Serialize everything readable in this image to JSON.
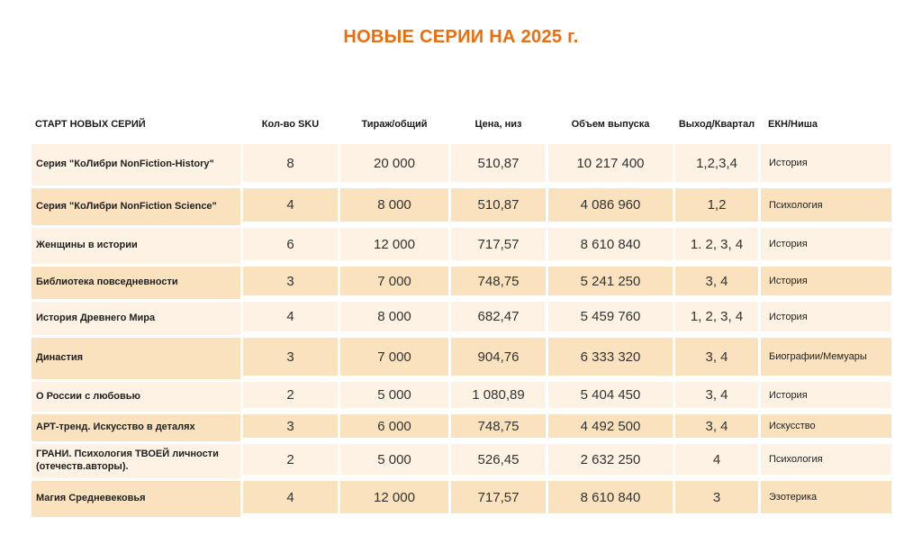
{
  "title": "НОВЫЕ СЕРИИ НА 2025 г.",
  "accent_color": "#ED6C0C",
  "row_colors": {
    "light": "#FDF2E3",
    "dark": "#FBE2BE"
  },
  "table": {
    "headers": [
      "СТАРТ НОВЫХ СЕРИЙ",
      "Кол-во SKU",
      "Тираж/общий",
      "Цена, низ",
      "Объем выпуска",
      "Выход/Квартал",
      "ЕКН/Ниша"
    ],
    "rows": [
      {
        "name": "Серия \"КоЛибри NonFiction-History\"",
        "sku": "8",
        "print_run": "20 000",
        "price_low": "510,87",
        "volume": "10 217 400",
        "quarter": "1,2,3,4",
        "niche": "История"
      },
      {
        "name": "Серия \"КоЛибри NonFiction Science\"",
        "sku": "4",
        "print_run": "8 000",
        "price_low": "510,87",
        "volume": "4 086 960",
        "quarter": "1,2",
        "niche": "Психология"
      },
      {
        "name": "Женщины в истории",
        "sku": "6",
        "print_run": "12 000",
        "price_low": "717,57",
        "volume": "8 610 840",
        "quarter": "1. 2, 3, 4",
        "niche": "История"
      },
      {
        "name": "Библиотека повседневности",
        "sku": "3",
        "print_run": "7 000",
        "price_low": "748,75",
        "volume": "5 241 250",
        "quarter": "3, 4",
        "niche": "История"
      },
      {
        "name": "История Древнего Мира",
        "sku": "4",
        "print_run": "8 000",
        "price_low": "682,47",
        "volume": "5 459 760",
        "quarter": "1, 2, 3, 4",
        "niche": "История"
      },
      {
        "name": "Династия",
        "sku": "3",
        "print_run": "7 000",
        "price_low": "904,76",
        "volume": "6 333 320",
        "quarter": "3, 4",
        "niche": "Биографии/Мемуары"
      },
      {
        "name": "О России с любовью",
        "sku": "2",
        "print_run": "5 000",
        "price_low": "1 080,89",
        "volume": "5 404 450",
        "quarter": "3, 4",
        "niche": "История"
      },
      {
        "name": "АРТ-тренд. Искусство в деталях",
        "sku": "3",
        "print_run": "6 000",
        "price_low": "748,75",
        "volume": "4 492 500",
        "quarter": "3, 4",
        "niche": "Искусство"
      },
      {
        "name": "ГРАНИ. Психология ТВОЕЙ личности (отечеств.авторы).",
        "sku": "2",
        "print_run": "5 000",
        "price_low": "526,45",
        "volume": "2 632 250",
        "quarter": "4",
        "niche": "Психология"
      },
      {
        "name": "Магия Средневековья",
        "sku": "4",
        "print_run": "12 000",
        "price_low": "717,57",
        "volume": "8 610 840",
        "quarter": "3",
        "niche": "Эзотерика"
      }
    ]
  }
}
